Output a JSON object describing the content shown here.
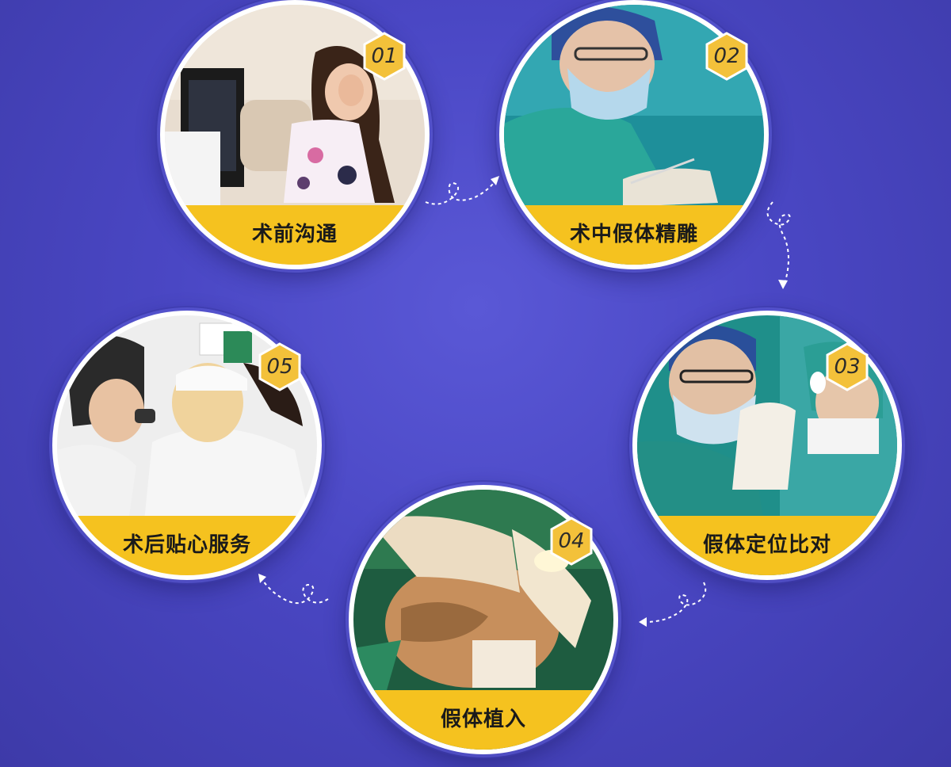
{
  "steps": [
    {
      "number": "01",
      "label": "术前沟通",
      "photo_icon": "consultation-photo"
    },
    {
      "number": "02",
      "label": "术中假体精雕",
      "photo_icon": "surgeon-carving-photo"
    },
    {
      "number": "03",
      "label": "假体定位比对",
      "photo_icon": "implant-positioning-photo"
    },
    {
      "number": "04",
      "label": "假体植入",
      "photo_icon": "implant-insertion-photo"
    },
    {
      "number": "05",
      "label": "术后贴心服务",
      "photo_icon": "aftercare-photo"
    }
  ],
  "colors": {
    "background": "#4a47c4",
    "band": "#f5c21f",
    "badge": "#f3c13a",
    "label_text": "#1a1a1a",
    "arrow": "#ffffff"
  }
}
